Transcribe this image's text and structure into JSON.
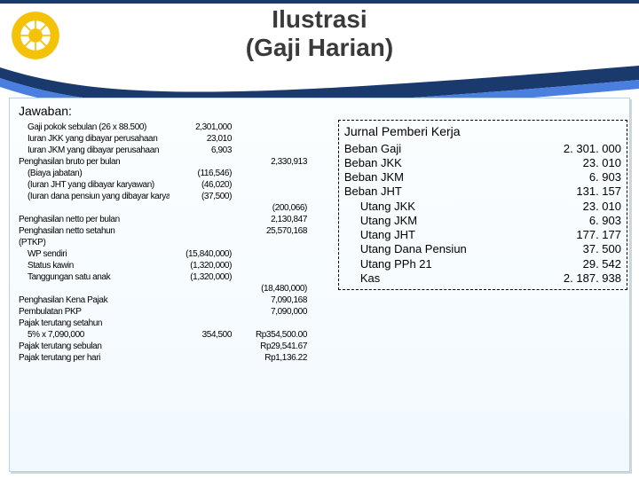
{
  "header": {
    "title1": "Ilustrasi",
    "title2": "(Gaji Harian)",
    "bar_color": "#1a3a6e",
    "swoosh_top": "#1a3a6e",
    "swoosh_bottom": "#4a7fe0",
    "logo_outer": "#f4c208",
    "logo_inner": "#ffffff"
  },
  "label_jawaban": "Jawaban:",
  "calc": {
    "rows": [
      {
        "indent": 1,
        "label": "Gaji pokok sebulan (26 x 88.500)",
        "c1": "2,301,000",
        "c2": ""
      },
      {
        "indent": 1,
        "label": "Iuran JKK yang dibayar perusahaan",
        "c1": "23,010",
        "c2": ""
      },
      {
        "indent": 1,
        "label": "Iuran JKM yang dibayar perusahaan",
        "c1": "6,903",
        "c2": ""
      },
      {
        "indent": 0,
        "label": "Penghasilan bruto per bulan",
        "c1": "",
        "c2": "2,330,913"
      },
      {
        "indent": 1,
        "label": "(Biaya jabatan)",
        "c1": "(116,546)",
        "c2": ""
      },
      {
        "indent": 1,
        "label": "(Iuran JHT yang dibayar karyawan)",
        "c1": "(46,020)",
        "c2": ""
      },
      {
        "indent": 1,
        "label": "(Iuran dana pensiun yang dibayar karyawan)",
        "c1": "(37,500)",
        "c2": ""
      },
      {
        "indent": 0,
        "label": "",
        "c1": "",
        "c2": "(200,066)"
      },
      {
        "indent": 0,
        "label": "Penghasilan netto per bulan",
        "c1": "",
        "c2": "2,130,847"
      },
      {
        "indent": 0,
        "label": "Penghasilan netto setahun",
        "c1": "",
        "c2": "25,570,168"
      },
      {
        "indent": 0,
        "label": "(PTKP)",
        "c1": "",
        "c2": ""
      },
      {
        "indent": 1,
        "label": "WP sendiri",
        "c1": "(15,840,000)",
        "c2": ""
      },
      {
        "indent": 1,
        "label": "Status kawin",
        "c1": "(1,320,000)",
        "c2": ""
      },
      {
        "indent": 1,
        "label": "Tanggungan satu anak",
        "c1": "(1,320,000)",
        "c2": ""
      },
      {
        "indent": 0,
        "label": "",
        "c1": "",
        "c2": "(18,480,000)"
      },
      {
        "indent": 0,
        "label": "Penghasilan Kena Pajak",
        "c1": "",
        "c2": "7,090,168"
      },
      {
        "indent": 0,
        "label": "Pembulatan PKP",
        "c1": "",
        "c2": "7,090,000"
      },
      {
        "indent": 0,
        "label": "Pajak terutang setahun",
        "c1": "",
        "c2": ""
      },
      {
        "indent": 1,
        "label": "5% x 7,090,000",
        "c1": "354,500",
        "c2": "Rp354,500.00"
      },
      {
        "indent": 0,
        "label": "Pajak terutang sebulan",
        "c1": "",
        "c2": "Rp29,541.67"
      },
      {
        "indent": 0,
        "label": "Pajak terutang per hari",
        "c1": "",
        "c2": "Rp1,136.22"
      }
    ]
  },
  "journal": {
    "heading": "Jurnal Pemberi Kerja",
    "debit": [
      {
        "label": "Beban Gaji",
        "value": "2. 301. 000"
      },
      {
        "label": "Beban JKK",
        "value": "23. 010"
      },
      {
        "label": "Beban JKM",
        "value": "6. 903"
      },
      {
        "label": "Beban JHT",
        "value": "131. 157"
      }
    ],
    "credit": [
      {
        "label": "Utang JKK",
        "value": "23. 010"
      },
      {
        "label": "Utang JKM",
        "value": "6. 903"
      },
      {
        "label": "Utang JHT",
        "value": "177. 177"
      },
      {
        "label": "Utang Dana Pensiun",
        "value": "37. 500"
      },
      {
        "label": "Utang PPh 21",
        "value": "29. 542"
      },
      {
        "label": "Kas",
        "value": "2. 187. 938"
      }
    ]
  }
}
